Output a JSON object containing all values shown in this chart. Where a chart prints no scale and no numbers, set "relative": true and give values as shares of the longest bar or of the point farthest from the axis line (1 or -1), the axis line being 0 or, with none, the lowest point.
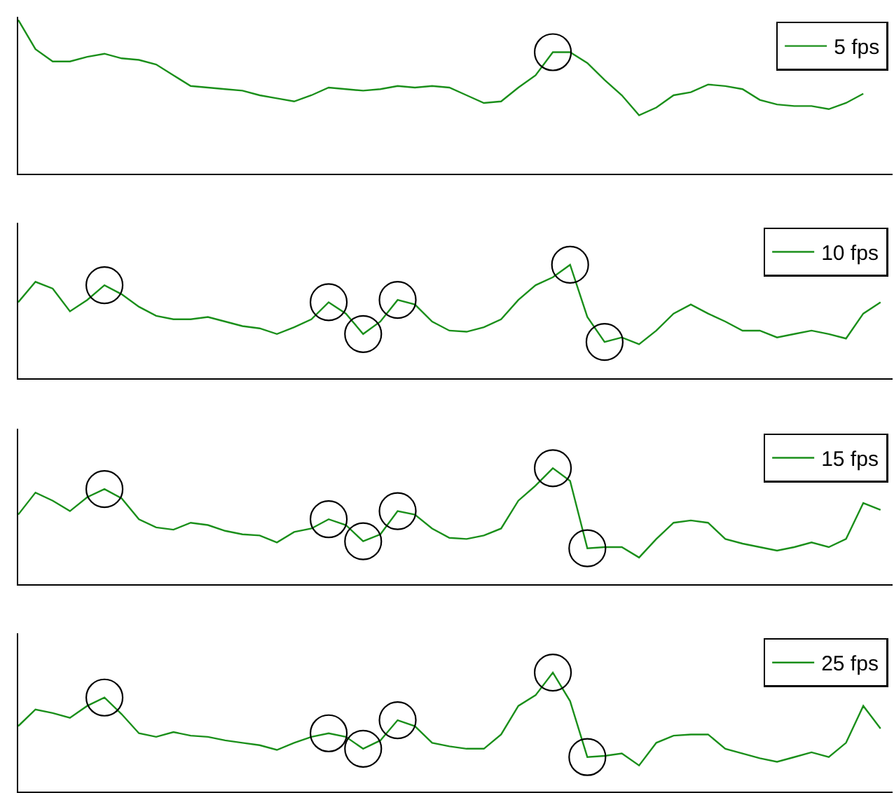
{
  "chart_data": [
    {
      "type": "line",
      "relative": true,
      "legend": "top right",
      "categories": [
        null,
        null,
        null,
        null,
        null,
        null,
        null,
        null,
        null,
        null,
        null,
        null,
        null,
        null,
        null,
        null,
        null,
        null,
        null,
        null,
        null,
        null,
        null,
        null,
        null,
        null,
        null,
        null,
        null,
        null,
        null,
        null,
        null,
        null,
        null,
        null,
        null,
        null,
        null,
        null,
        null,
        null,
        null,
        null,
        null,
        null,
        null,
        null,
        null,
        null
      ],
      "series": [
        {
          "name": "5 fps",
          "color": "#1a8f1a",
          "values": [
            1.0,
            0.81,
            0.73,
            0.73,
            0.76,
            0.78,
            0.75,
            0.74,
            0.71,
            0.64,
            0.57,
            0.56,
            0.55,
            0.54,
            0.51,
            0.49,
            0.47,
            0.51,
            0.56,
            0.55,
            0.54,
            0.55,
            0.57,
            0.56,
            0.57,
            0.56,
            0.51,
            0.46,
            0.47,
            0.56,
            0.64,
            0.79,
            0.79,
            0.72,
            0.61,
            0.51,
            0.38,
            0.43,
            0.51,
            0.53,
            0.58,
            0.57,
            0.55,
            0.48,
            0.45,
            0.44,
            0.44,
            0.42,
            0.46,
            0.52
          ]
        }
      ]
    },
    {
      "type": "line",
      "relative": true,
      "legend": "top right",
      "categories": [
        null,
        null,
        null,
        null,
        null,
        null,
        null,
        null,
        null,
        null,
        null,
        null,
        null,
        null,
        null,
        null,
        null,
        null,
        null,
        null,
        null,
        null,
        null,
        null,
        null,
        null,
        null,
        null,
        null,
        null,
        null,
        null,
        null,
        null,
        null,
        null,
        null,
        null,
        null,
        null,
        null,
        null,
        null,
        null,
        null,
        null,
        null,
        null,
        null,
        null,
        null
      ],
      "series": [
        {
          "name": "10 fps",
          "color": "#1a8f1a",
          "values": [
            0.67,
            0.85,
            0.79,
            0.59,
            0.69,
            0.82,
            0.74,
            0.63,
            0.55,
            0.52,
            0.52,
            0.54,
            0.5,
            0.46,
            0.44,
            0.39,
            0.45,
            0.52,
            0.67,
            0.57,
            0.39,
            0.5,
            0.69,
            0.65,
            0.5,
            0.42,
            0.41,
            0.45,
            0.52,
            0.69,
            0.82,
            0.89,
            1.0,
            0.54,
            0.32,
            0.36,
            0.3,
            0.42,
            0.57,
            0.65,
            0.57,
            0.5,
            0.42,
            0.42,
            0.36,
            0.39,
            0.42,
            0.39,
            0.35,
            0.57,
            0.67
          ]
        }
      ]
    },
    {
      "type": "line",
      "relative": true,
      "legend": "top right",
      "categories": [
        null,
        null,
        null,
        null,
        null,
        null,
        null,
        null,
        null,
        null,
        null,
        null,
        null,
        null,
        null,
        null,
        null,
        null,
        null,
        null,
        null,
        null,
        null,
        null,
        null,
        null,
        null,
        null,
        null,
        null,
        null,
        null,
        null,
        null,
        null,
        null,
        null,
        null,
        null,
        null,
        null,
        null,
        null,
        null,
        null,
        null,
        null,
        null,
        null,
        null,
        null
      ],
      "series": [
        {
          "name": "15 fps",
          "color": "#1a8f1a",
          "values": [
            0.6,
            0.79,
            0.72,
            0.63,
            0.75,
            0.82,
            0.74,
            0.56,
            0.49,
            0.47,
            0.53,
            0.51,
            0.46,
            0.43,
            0.42,
            0.36,
            0.45,
            0.48,
            0.56,
            0.51,
            0.37,
            0.43,
            0.63,
            0.6,
            0.48,
            0.4,
            0.39,
            0.42,
            0.48,
            0.72,
            0.85,
            1.0,
            0.89,
            0.31,
            0.32,
            0.32,
            0.23,
            0.39,
            0.53,
            0.55,
            0.53,
            0.39,
            0.35,
            0.32,
            0.29,
            0.32,
            0.36,
            0.32,
            0.39,
            0.7,
            0.64
          ]
        }
      ]
    },
    {
      "type": "line",
      "relative": true,
      "legend": "top right",
      "categories": [
        null,
        null,
        null,
        null,
        null,
        null,
        null,
        null,
        null,
        null,
        null,
        null,
        null,
        null,
        null,
        null,
        null,
        null,
        null,
        null,
        null,
        null,
        null,
        null,
        null,
        null,
        null,
        null,
        null,
        null,
        null,
        null,
        null,
        null,
        null,
        null,
        null,
        null,
        null,
        null,
        null,
        null,
        null,
        null,
        null,
        null,
        null,
        null,
        null,
        null,
        null
      ],
      "series": [
        {
          "name": "25 fps",
          "color": "#1a8f1a",
          "values": [
            0.55,
            0.69,
            0.66,
            0.62,
            0.72,
            0.79,
            0.65,
            0.49,
            0.46,
            0.5,
            0.47,
            0.46,
            0.43,
            0.41,
            0.39,
            0.35,
            0.41,
            0.46,
            0.49,
            0.46,
            0.36,
            0.43,
            0.6,
            0.55,
            0.41,
            0.38,
            0.36,
            0.36,
            0.48,
            0.72,
            0.81,
            1.0,
            0.76,
            0.29,
            0.3,
            0.32,
            0.22,
            0.41,
            0.47,
            0.48,
            0.48,
            0.36,
            0.32,
            0.28,
            0.25,
            0.29,
            0.33,
            0.29,
            0.41,
            0.72,
            0.53
          ]
        }
      ]
    }
  ]
}
